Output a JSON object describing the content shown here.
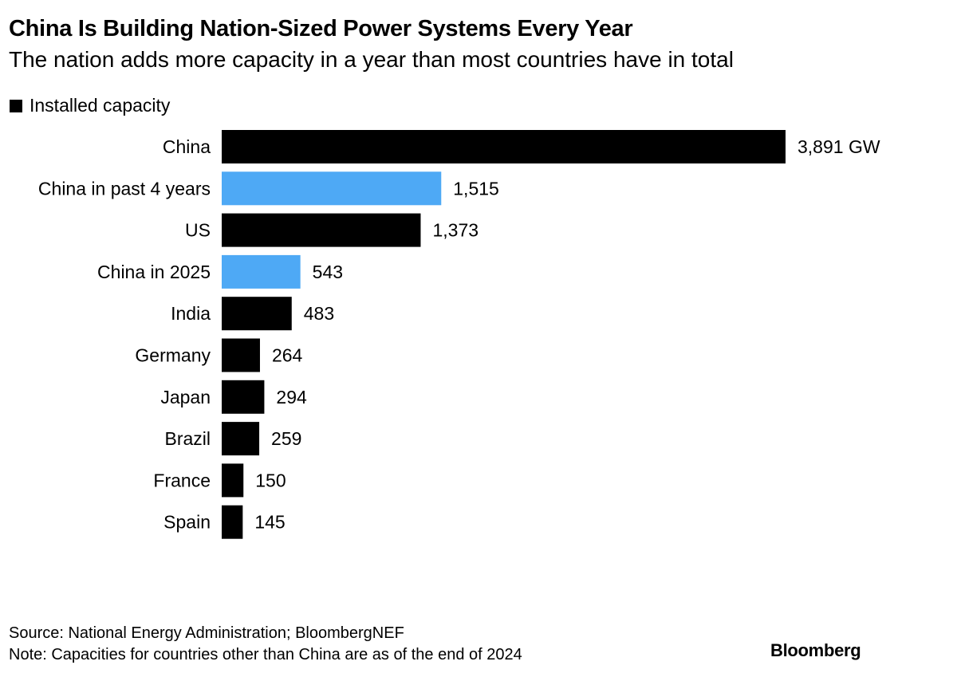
{
  "chart_data": {
    "type": "bar",
    "orientation": "horizontal",
    "title": "China Is Building Nation-Sized Power Systems Every Year",
    "subtitle": "The nation adds more capacity in a year than most countries have in total",
    "legend": [
      {
        "label": "Installed capacity",
        "color": "#000000"
      }
    ],
    "legend_position": "top-left",
    "unit": "GW",
    "categories": [
      "China",
      "China in past 4 years",
      "US",
      "China in 2025",
      "India",
      "Germany",
      "Japan",
      "Brazil",
      "France",
      "Spain"
    ],
    "values": [
      3891,
      1515,
      1373,
      543,
      483,
      264,
      294,
      259,
      150,
      145
    ],
    "value_labels": [
      "3,891 GW",
      "1,515",
      "1,373",
      "543",
      "483",
      "264",
      "294",
      "259",
      "150",
      "145"
    ],
    "colors": [
      "#000000",
      "#4ea9f5",
      "#000000",
      "#4ea9f5",
      "#000000",
      "#000000",
      "#000000",
      "#000000",
      "#000000",
      "#000000"
    ],
    "xlim": [
      0,
      3891
    ],
    "grid": false,
    "xlabel": "",
    "ylabel": ""
  },
  "footer": {
    "source": "Source: National Energy Administration; BloombergNEF",
    "note": "Note: Capacities for countries other than China are as of the end of 2024",
    "brand": "Bloomberg"
  }
}
